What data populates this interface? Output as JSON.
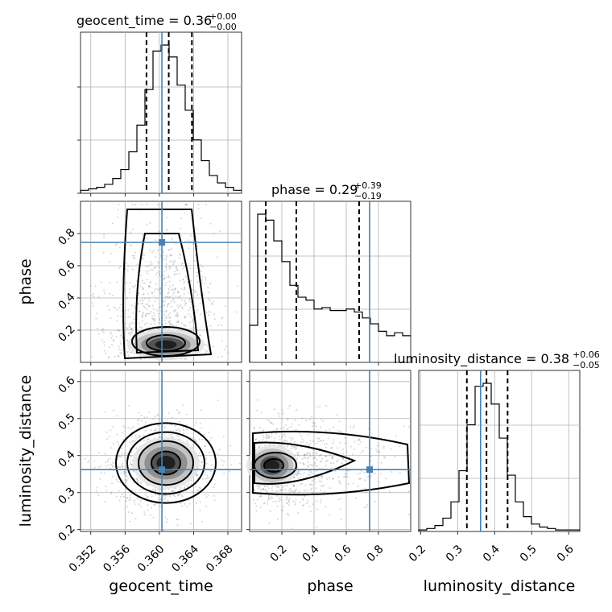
{
  "chart_data": {
    "type": "corner",
    "parameters": [
      "geocent_time",
      "phase",
      "luminosity_distance"
    ],
    "truth_color": "#4682b4",
    "truths": {
      "geocent_time": 0.3603,
      "phase": 0.745,
      "luminosity_distance": 0.362
    },
    "grid": true,
    "titles": [
      {
        "param": "geocent_time",
        "text": "geocent_time = 0.36",
        "sup": "+0.00",
        "sub": "−0.00"
      },
      {
        "param": "phase",
        "text": "phase = 0.29",
        "sup": "+0.39",
        "sub": "−0.19"
      },
      {
        "param": "luminosity_distance",
        "text": "luminosity_distance = 0.38",
        "sup": "+0.06",
        "sub": "−0.05"
      }
    ],
    "axes": {
      "geocent_time": {
        "range": [
          0.3508,
          0.3696
        ],
        "ticks": [
          0.352,
          0.356,
          0.36,
          0.364,
          0.368
        ],
        "tick_labels": [
          "0.352",
          "0.356",
          "0.360",
          "0.364",
          "0.368"
        ],
        "label": "geocent_time"
      },
      "phase": {
        "range": [
          0.0,
          1.0
        ],
        "ticks": [
          0.2,
          0.4,
          0.6,
          0.8
        ],
        "tick_labels": [
          "0.2",
          "0.4",
          "0.6",
          "0.8"
        ],
        "label": "phase"
      },
      "luminosity_distance": {
        "range": [
          0.195,
          0.63
        ],
        "ticks": [
          0.2,
          0.3,
          0.4,
          0.5,
          0.6
        ],
        "tick_labels": [
          "0.2",
          "0.3",
          "0.4",
          "0.5",
          "0.6"
        ],
        "label": "luminosity_distance"
      }
    },
    "histograms": {
      "geocent_time": {
        "edges_range": [
          0.3508,
          0.3696
        ],
        "counts": [
          2,
          3,
          4,
          6,
          10,
          16,
          28,
          46,
          70,
          96,
          100,
          92,
          73,
          56,
          36,
          22,
          12,
          7,
          4,
          2
        ],
        "quantiles": [
          0.3585,
          0.3611,
          0.3638
        ]
      },
      "phase": {
        "edges_range": [
          0.0,
          1.0
        ],
        "counts": [
          25,
          100,
          96,
          82,
          68,
          52,
          44,
          42,
          36,
          37,
          35,
          35,
          36,
          34,
          30,
          26,
          21,
          18,
          20,
          18
        ],
        "quantiles": [
          0.1,
          0.29,
          0.68
        ]
      },
      "luminosity_distance": {
        "edges_range": [
          0.195,
          0.63
        ],
        "counts": [
          1,
          2,
          4,
          9,
          20,
          41,
          72,
          98,
          100,
          86,
          63,
          38,
          20,
          10,
          5,
          3,
          2,
          1,
          1,
          1
        ],
        "quantiles": [
          0.325,
          0.378,
          0.435
        ]
      }
    }
  }
}
